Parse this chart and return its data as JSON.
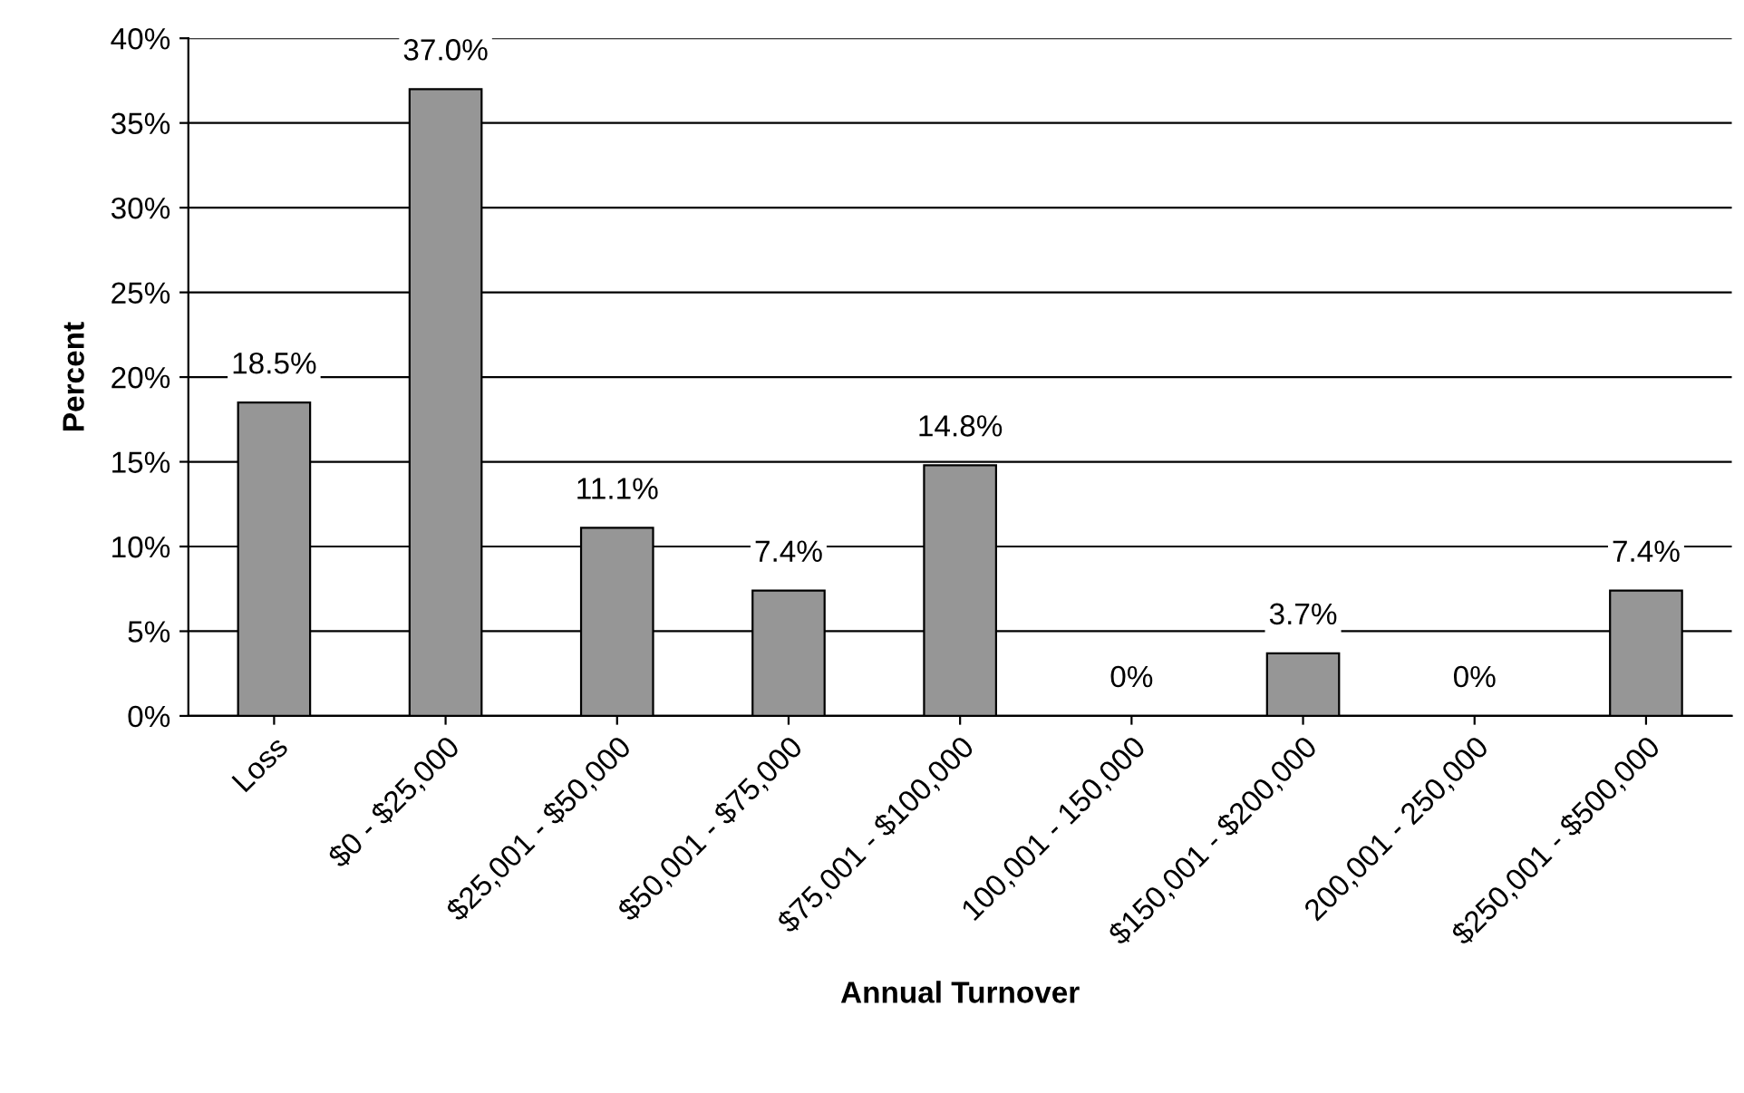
{
  "chart_data": {
    "type": "bar",
    "xlabel": "Annual Turnover",
    "ylabel": "Percent",
    "categories": [
      "Loss",
      "$0 - $25,000",
      "$25,001 - $50,000",
      "$50,001 - $75,000",
      "$75,001 - $100,000",
      "100,001 - 150,000",
      "$150,001 - $200,000",
      "200,001 - 250,000",
      "$250,001 - $500,000"
    ],
    "values": [
      18.5,
      37.0,
      11.1,
      7.4,
      14.8,
      0,
      3.7,
      0,
      7.4
    ],
    "value_labels": [
      "18.5%",
      "37.0%",
      "11.1%",
      "7.4%",
      "14.8%",
      "0%",
      "3.7%",
      "0%",
      "7.4%"
    ],
    "color": "#969696",
    "ylim": [
      0,
      40
    ],
    "yticks": [
      {
        "value": 0,
        "label": "0%"
      },
      {
        "value": 5,
        "label": "5%"
      },
      {
        "value": 10,
        "label": "10%"
      },
      {
        "value": 15,
        "label": "15%"
      },
      {
        "value": 20,
        "label": "20%"
      },
      {
        "value": 25,
        "label": "25%"
      },
      {
        "value": 30,
        "label": "30%"
      },
      {
        "value": 35,
        "label": "35%"
      },
      {
        "value": 40,
        "label": "40%"
      }
    ],
    "grid": "y",
    "legend": false
  }
}
